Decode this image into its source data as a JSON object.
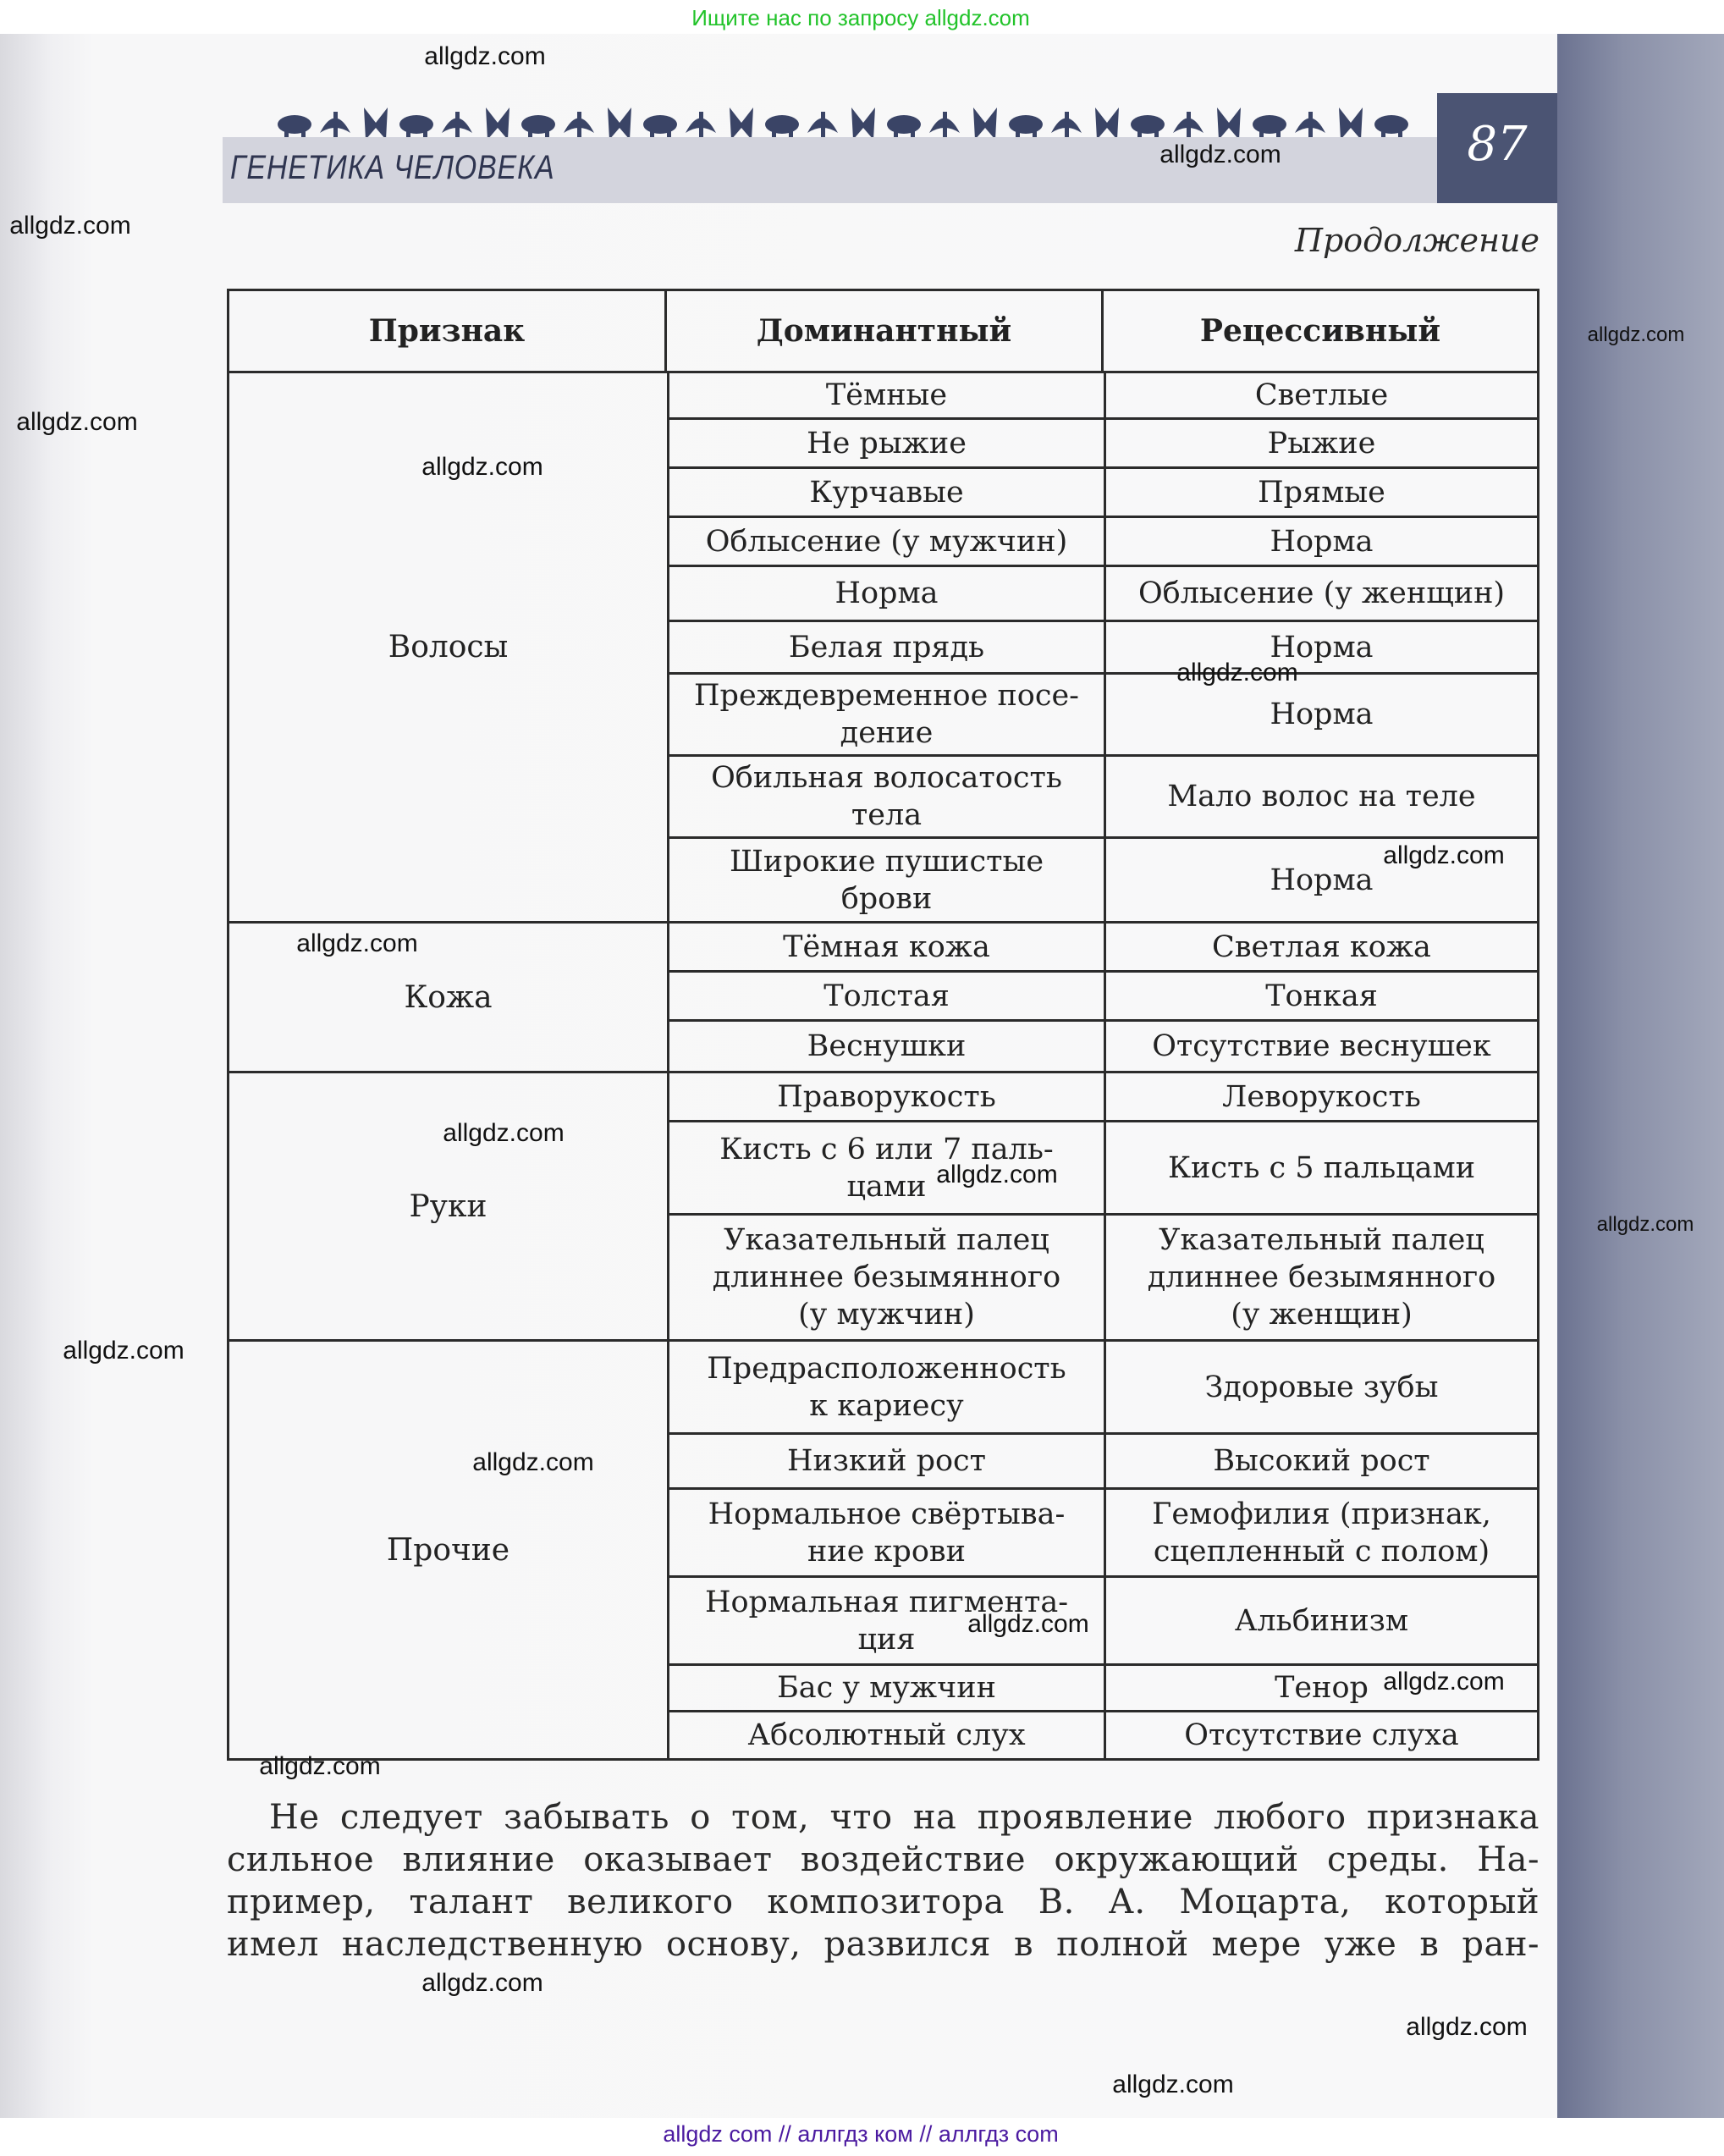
{
  "top_banner": "Ищите нас по запросу allgdz.com",
  "header": {
    "section_title": "ГЕНЕТИКА ЧЕЛОВЕКА",
    "page_number": "87",
    "accent_color": "#4b5473"
  },
  "continuation": "Продолжение",
  "table": {
    "headers": [
      "Признак",
      "Доминантный",
      "Рецессивный"
    ],
    "groups": [
      {
        "name": "Волосы",
        "rows": [
          [
            "Тёмные",
            "Светлые"
          ],
          [
            "Не рыжие",
            "Рыжие"
          ],
          [
            "Курчавые",
            "Прямые"
          ],
          [
            "Облысение (у мужчин)",
            "Норма"
          ],
          [
            "Норма",
            "Облысение (у женщин)"
          ],
          [
            "Белая прядь",
            "Норма"
          ],
          [
            "Преждевременное посе-\nдение",
            "Норма"
          ],
          [
            "Обильная волосатость\nтела",
            "Мало волос на теле"
          ],
          [
            "Широкие пушистые\nброви",
            "Норма"
          ]
        ]
      },
      {
        "name": "Кожа",
        "rows": [
          [
            "Тёмная кожа",
            "Светлая кожа"
          ],
          [
            "Толстая",
            "Тонкая"
          ],
          [
            "Веснушки",
            "Отсутствие веснушек"
          ]
        ]
      },
      {
        "name": "Руки",
        "rows": [
          [
            "Праворукость",
            "Леворукость"
          ],
          [
            "Кисть с 6 или 7 паль-\nцами",
            "Кисть с 5 пальцами"
          ],
          [
            "Указательный палец\nдлиннее безымянного\n(у мужчин)",
            "Указательный палец\nдлиннее безымянного\n(у женщин)"
          ]
        ]
      },
      {
        "name": "Прочие",
        "rows": [
          [
            "Предрасположенность\nк кариесу",
            "Здоровые зубы"
          ],
          [
            "Низкий рост",
            "Высокий рост"
          ],
          [
            "Нормальное свёртыва-\nние крови",
            "Гемофилия (признак,\nсцепленный с полом)"
          ],
          [
            "Нормальная пигмента-\nция",
            "Альбинизм"
          ],
          [
            "Бас у мужчин",
            "Тенор"
          ],
          [
            "Абсолютный слух",
            "Отсутствие слуха"
          ]
        ]
      }
    ]
  },
  "paragraph": [
    "Не следует забывать о том, что на проявление любого признака",
    "сильное влияние оказывает воздействие окружающий среды. На-",
    "пример, талант великого композитора В. А. Моцарта, который",
    "имел наследственную основу, развился в полной мере уже в ран-"
  ],
  "watermark": "allgdz.com",
  "bottom_banner": "allgdz com  //  аллгдз ком  //  аллгдз com"
}
